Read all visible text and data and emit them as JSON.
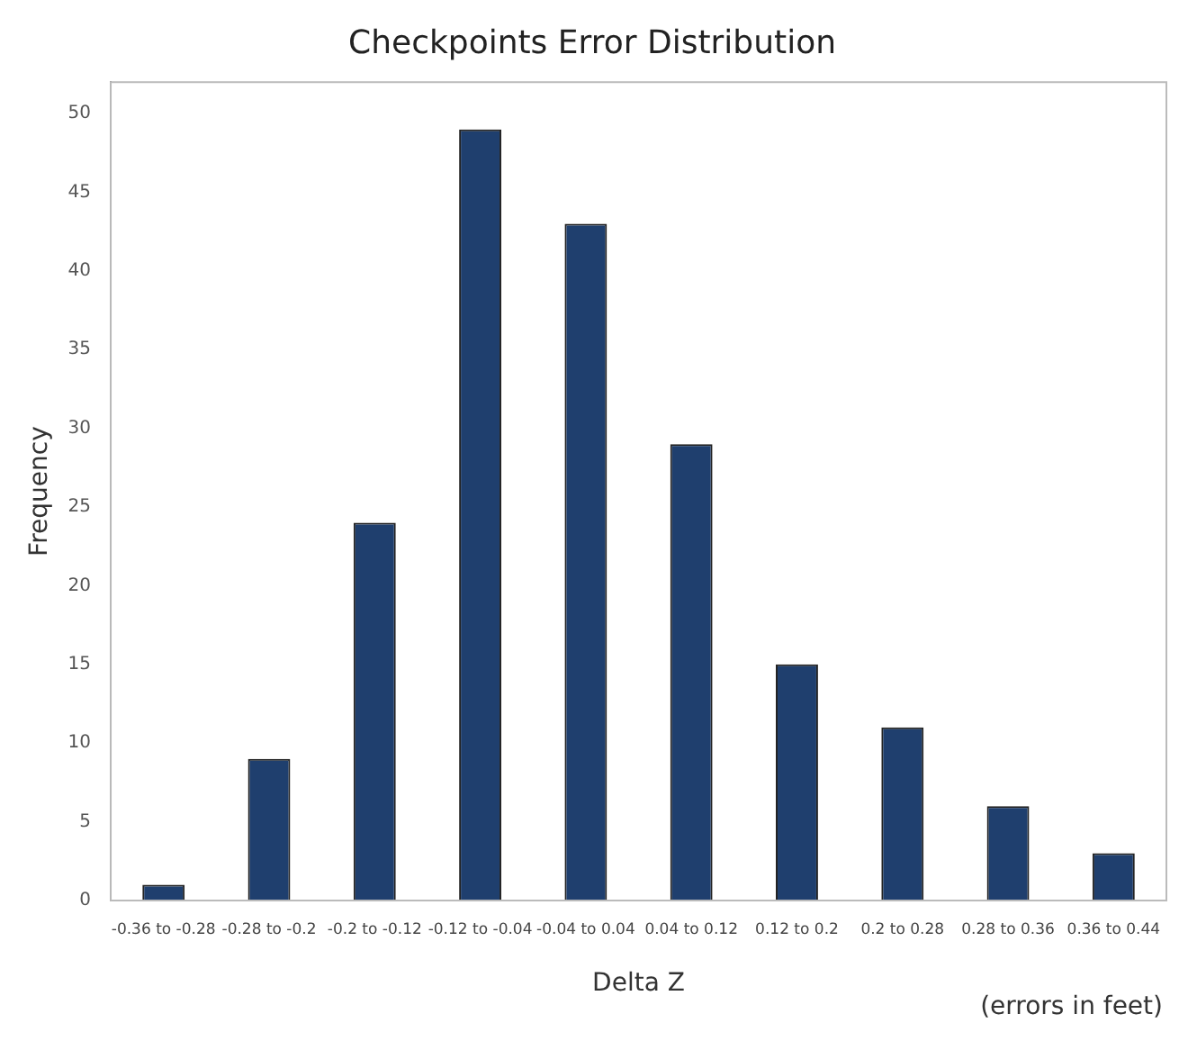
{
  "chart_data": {
    "type": "bar",
    "title": "Checkpoints Error Distribution",
    "xlabel": "Delta Z",
    "ylabel": "Frequency",
    "categories": [
      "-0.36 to -0.28",
      "-0.28 to -0.2",
      "-0.2 to -0.12",
      "-0.12 to -0.04",
      "-0.04 to 0.04",
      "0.04 to 0.12",
      "0.12 to 0.2",
      "0.2 to 0.28",
      "0.28 to 0.36",
      "0.36 to 0.44"
    ],
    "values": [
      1,
      9,
      24,
      49,
      43,
      29,
      15,
      11,
      6,
      3
    ],
    "color": "#1f3f6e",
    "ylim": [
      0,
      52
    ],
    "yticks": [
      0,
      5,
      10,
      15,
      20,
      25,
      30,
      35,
      40,
      45,
      50
    ],
    "grid": false,
    "legend": false,
    "annotations": [
      "(errors in feet)"
    ]
  }
}
